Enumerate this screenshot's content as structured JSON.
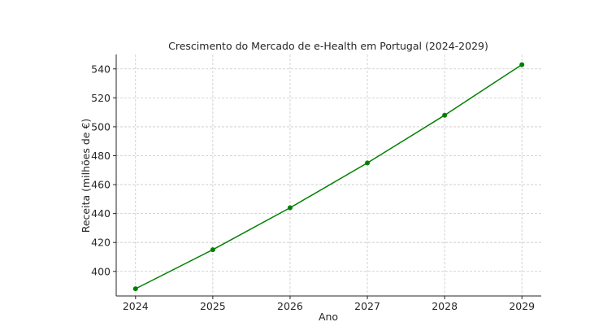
{
  "chart_data": {
    "type": "line",
    "title": "Crescimento do Mercado de e-Health em Portugal (2024-2029)",
    "xlabel": "Ano",
    "ylabel": "Receita (milhões de €)",
    "x": [
      2024,
      2025,
      2026,
      2027,
      2028,
      2029
    ],
    "x_ticks": [
      "2024",
      "2025",
      "2026",
      "2027",
      "2028",
      "2029"
    ],
    "y_ticks": [
      400,
      420,
      440,
      460,
      480,
      500,
      520,
      540
    ],
    "ylim": [
      383,
      550
    ],
    "xlim": [
      2023.75,
      2029.25
    ],
    "grid": true,
    "series": [
      {
        "values": [
          388,
          415,
          444,
          475,
          508,
          543
        ],
        "color": "#008000",
        "marker": "circle"
      }
    ]
  }
}
